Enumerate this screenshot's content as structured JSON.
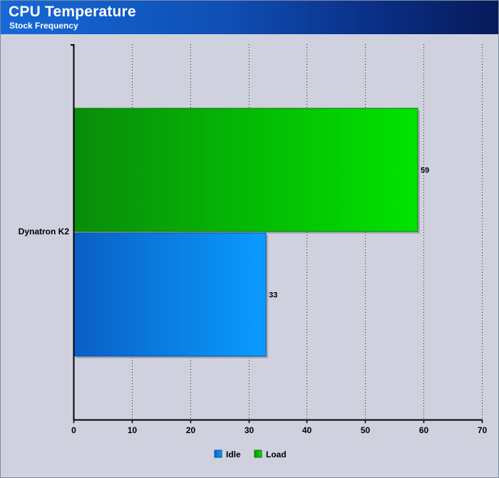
{
  "header": {
    "title": "CPU Temperature",
    "subtitle": "Stock Frequency"
  },
  "colors": {
    "background": "#cfd2de",
    "idle_dark": "#0a5fc4",
    "idle_light": "#0a9cff",
    "load_dark": "#0a8c0a",
    "load_light": "#00e400"
  },
  "chart_data": {
    "type": "bar",
    "orientation": "horizontal",
    "title": "CPU Temperature",
    "subtitle": "Stock Frequency",
    "categories": [
      "Dynatron K2"
    ],
    "series": [
      {
        "name": "Idle",
        "values": [
          33
        ]
      },
      {
        "name": "Load",
        "values": [
          59
        ]
      }
    ],
    "xlabel": "",
    "ylabel": "",
    "xlim": [
      0,
      70
    ],
    "xticks": [
      0,
      10,
      20,
      30,
      40,
      50,
      60,
      70
    ],
    "grid": "vertical dotted",
    "legend": "bottom-center",
    "data_labels": true
  }
}
